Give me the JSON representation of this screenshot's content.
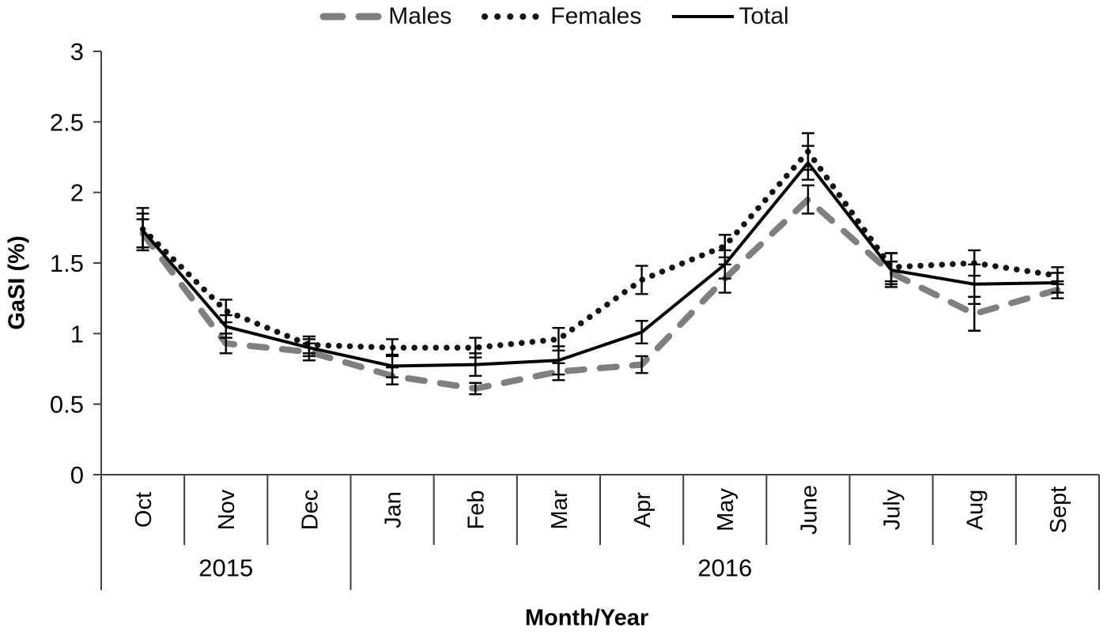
{
  "chart_data": {
    "type": "line",
    "title": "",
    "xlabel": "Month/Year",
    "ylabel": "GaSI (%)",
    "ylim": [
      0,
      3
    ],
    "y_tick_labels": [
      "0",
      "0.5",
      "1",
      "1.5",
      "2",
      "2.5",
      "3"
    ],
    "grid": false,
    "legend_position": "top",
    "error_bars": true,
    "categories": [
      "Oct",
      "Nov",
      "Dec",
      "Jan",
      "Feb",
      "Mar",
      "Apr",
      "May",
      "June",
      "July",
      "Aug",
      "Sept"
    ],
    "year_groups": [
      {
        "label": "2015",
        "start": 0,
        "end": 2
      },
      {
        "label": "2016",
        "start": 3,
        "end": 11
      }
    ],
    "series": [
      {
        "name": "Males",
        "line_style": "dashed",
        "color": "#7f7f7f",
        "values": [
          1.71,
          0.93,
          0.87,
          0.7,
          0.61,
          0.73,
          0.78,
          1.39,
          1.95,
          1.43,
          1.14,
          1.31
        ],
        "errors": [
          0.1,
          0.07,
          0.06,
          0.06,
          0.04,
          0.06,
          0.06,
          0.1,
          0.1,
          0.08,
          0.12,
          0.06
        ]
      },
      {
        "name": "Females",
        "line_style": "dotted",
        "color": "#141414",
        "values": [
          1.74,
          1.16,
          0.92,
          0.9,
          0.9,
          0.96,
          1.38,
          1.62,
          2.29,
          1.47,
          1.5,
          1.41
        ],
        "errors": [
          0.15,
          0.08,
          0.06,
          0.06,
          0.07,
          0.08,
          0.1,
          0.08,
          0.13,
          0.1,
          0.09,
          0.06
        ]
      },
      {
        "name": "Total",
        "line_style": "solid",
        "color": "#000000",
        "values": [
          1.73,
          1.05,
          0.9,
          0.77,
          0.78,
          0.81,
          1.01,
          1.49,
          2.21,
          1.45,
          1.35,
          1.36
        ],
        "errors": [
          0.12,
          0.08,
          0.06,
          0.08,
          0.08,
          0.1,
          0.08,
          0.1,
          0.12,
          0.12,
          0.14,
          0.07
        ]
      }
    ],
    "axis_color": "#404040",
    "error_bar_color": "#000000"
  }
}
